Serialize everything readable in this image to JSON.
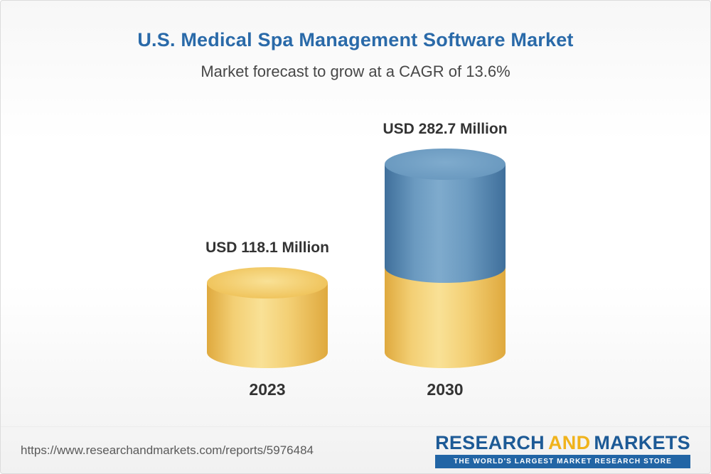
{
  "chart_data": {
    "type": "bar",
    "title": "U.S. Medical Spa Management Software Market",
    "subtitle": "Market forecast to grow at a CAGR of 13.6%",
    "cagr_percent": 13.6,
    "unit": "USD Million",
    "categories": [
      "2023",
      "2030"
    ],
    "values": [
      118.1,
      282.7
    ],
    "value_labels": [
      "USD 118.1 Million",
      "USD 282.7 Million"
    ],
    "bar_style": "3d-cylinder",
    "stacking": "2030 bar shows the 2023 base amount in yellow with forecast growth in blue",
    "axes": "none",
    "legend": "none"
  },
  "footer": {
    "url": "https://www.researchandmarkets.com/reports/5976484",
    "logo": {
      "research": "RESEARCH",
      "and": "AND",
      "markets": "MARKETS",
      "tagline": "THE WORLD'S LARGEST MARKET RESEARCH STORE"
    }
  },
  "colors": {
    "title_blue": "#2a6aa9",
    "bar_yellow": "#f0c55e",
    "bar_yellow_light": "#f9e196",
    "bar_yellow_dark": "#dfa93e",
    "bar_blue": "#6b9ac0",
    "bar_blue_light": "#7fabcd",
    "bar_blue_dark": "#3f6f9b",
    "logo_blue": "#1d5a96",
    "logo_gold": "#f0b31c",
    "tagline_bar_blue": "#2265a5",
    "url_gray": "#5a5a5a"
  }
}
